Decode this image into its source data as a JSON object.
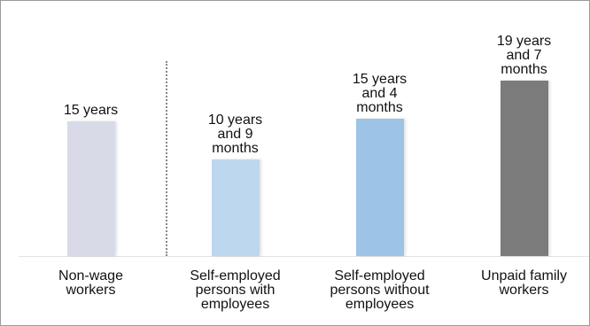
{
  "chart_data": {
    "type": "bar",
    "categories": [
      "Non-wage workers",
      "Self-employed persons with employees",
      "Self-employed persons without employees",
      "Unpaid family workers"
    ],
    "values": [
      15,
      10.75,
      15.333,
      19.583
    ],
    "value_labels": [
      "15 years",
      "10 years and 9 months",
      "15 years and 4 months",
      "19 years and 7 months"
    ],
    "colors": [
      "#d8dae7",
      "#bdd7ee",
      "#9dc3e6",
      "#7b7b7b"
    ],
    "ylim": [
      0,
      28
    ]
  }
}
